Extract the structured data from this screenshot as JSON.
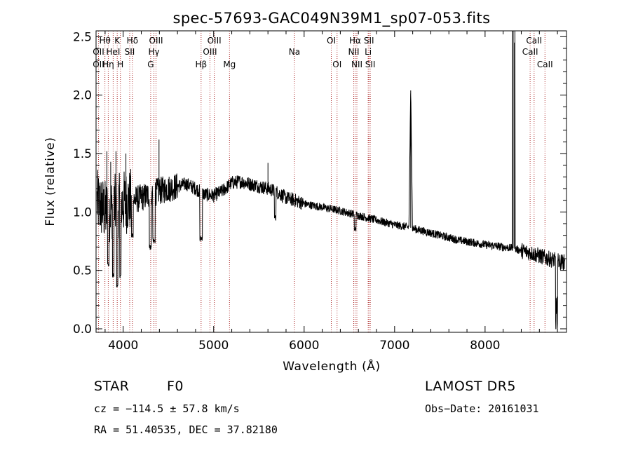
{
  "chart_data": {
    "type": "line",
    "title": "spec-57693-GAC049N39M1_sp07-053.fits",
    "xlabel": "Wavelength (Å)",
    "ylabel": "Flux (relative)",
    "xlim": [
      3700,
      8900
    ],
    "ylim": [
      -0.03,
      2.55
    ],
    "xticks": [
      4000,
      5000,
      6000,
      7000,
      8000
    ],
    "xtick_labels": [
      "4000",
      "5000",
      "6000",
      "7000",
      "8000"
    ],
    "yticks": [
      0.0,
      0.5,
      1.0,
      1.5,
      2.0,
      2.5
    ],
    "ytick_labels": [
      "0.0",
      "0.5",
      "1.0",
      "1.5",
      "2.0",
      "2.5"
    ],
    "grid": false,
    "series_color": "#000000",
    "line_marker_color": "#b03030",
    "spectrum_nodes": {
      "x": [
        3700,
        3750,
        3800,
        3850,
        3900,
        3950,
        4000,
        4100,
        4200,
        4300,
        4400,
        4500,
        4600,
        4700,
        4800,
        4900,
        5000,
        5100,
        5200,
        5300,
        5400,
        5500,
        5600,
        5700,
        5800,
        5900,
        6000,
        6200,
        6400,
        6600,
        6800,
        7000,
        7150,
        7300,
        7500,
        7700,
        8000,
        8200,
        8300,
        8500,
        8700,
        8850
      ],
      "y": [
        1.1,
        1.05,
        1.0,
        1.02,
        1.05,
        1.05,
        1.08,
        1.1,
        1.12,
        1.15,
        1.18,
        1.2,
        1.22,
        1.24,
        1.2,
        1.15,
        1.14,
        1.18,
        1.25,
        1.26,
        1.24,
        1.22,
        1.2,
        1.17,
        1.12,
        1.1,
        1.07,
        1.04,
        1.01,
        0.97,
        0.93,
        0.89,
        0.87,
        0.84,
        0.8,
        0.76,
        0.72,
        0.7,
        0.69,
        0.65,
        0.6,
        0.57
      ]
    },
    "features": [
      {
        "x": 3835,
        "y": 0.55,
        "w": 3
      },
      {
        "x": 3890,
        "y": 0.45,
        "w": 3
      },
      {
        "x": 3934,
        "y": 0.38,
        "w": 3
      },
      {
        "x": 3969,
        "y": 0.45,
        "w": 3
      },
      {
        "x": 4102,
        "y": 0.8,
        "w": 4
      },
      {
        "x": 4300,
        "y": 0.7,
        "w": 4
      },
      {
        "x": 4340,
        "y": 0.75,
        "w": 5
      },
      {
        "x": 4861,
        "y": 0.77,
        "w": 6
      },
      {
        "x": 5680,
        "y": 0.95,
        "w": 3
      },
      {
        "x": 6563,
        "y": 0.85,
        "w": 4
      }
    ],
    "spikes": [
      {
        "x": 3820,
        "y": 1.52
      },
      {
        "x": 3862,
        "y": 1.43
      },
      {
        "x": 3920,
        "y": 1.52
      },
      {
        "x": 4030,
        "y": 1.5
      },
      {
        "x": 4396,
        "y": 1.62
      },
      {
        "x": 5600,
        "y": 1.42
      },
      {
        "x": 7178,
        "y": 2.04
      },
      {
        "x": 8310,
        "y": 2.55
      },
      {
        "x": 8325,
        "y": 2.45
      }
    ],
    "lines": [
      {
        "label": "Hθ",
        "wl": 3798,
        "row": 0
      },
      {
        "label": "OII",
        "wl": 3727,
        "row": 1
      },
      {
        "label": "OII",
        "wl": 3727,
        "row": 2
      },
      {
        "label": "Hη",
        "wl": 3835,
        "row": 2
      },
      {
        "label": "HeI",
        "wl": 3889,
        "row": 1
      },
      {
        "label": "K",
        "wl": 3934,
        "row": 0
      },
      {
        "label": "H",
        "wl": 3969,
        "row": 2
      },
      {
        "label": "Hδ",
        "wl": 4102,
        "row": 0
      },
      {
        "label": "SII",
        "wl": 4072,
        "row": 1
      },
      {
        "label": "OIII",
        "wl": 4363,
        "row": 0
      },
      {
        "label": "Hγ",
        "wl": 4340,
        "row": 1
      },
      {
        "label": "G",
        "wl": 4304,
        "row": 2
      },
      {
        "label": "Hβ",
        "wl": 4861,
        "row": 2
      },
      {
        "label": "OIII",
        "wl": 5007,
        "row": 0
      },
      {
        "label": "OIII",
        "wl": 4959,
        "row": 1
      },
      {
        "label": "Mg",
        "wl": 5175,
        "row": 2
      },
      {
        "label": "Na",
        "wl": 5893,
        "row": 1
      },
      {
        "label": "OI",
        "wl": 6300,
        "row": 0
      },
      {
        "label": "OI",
        "wl": 6364,
        "row": 2
      },
      {
        "label": "Hα",
        "wl": 6563,
        "row": 0
      },
      {
        "label": "NII",
        "wl": 6548,
        "row": 1
      },
      {
        "label": "NII",
        "wl": 6583,
        "row": 2
      },
      {
        "label": "SII",
        "wl": 6716,
        "row": 0
      },
      {
        "label": "Li",
        "wl": 6708,
        "row": 1
      },
      {
        "label": "SII",
        "wl": 6731,
        "row": 2
      },
      {
        "label": "CaII",
        "wl": 8542,
        "row": 0
      },
      {
        "label": "CaII",
        "wl": 8498,
        "row": 1
      },
      {
        "label": "CaII",
        "wl": 8662,
        "row": 2
      }
    ]
  },
  "info": {
    "class_label": "STAR",
    "subclass_label": "F0",
    "survey": "LAMOST  DR5",
    "redshift": "cz = −114.5 ± 57.8 km/s",
    "obs_date": "Obs−Date: 20161031",
    "coords": "RA =  51.40535, DEC =  37.82180"
  }
}
